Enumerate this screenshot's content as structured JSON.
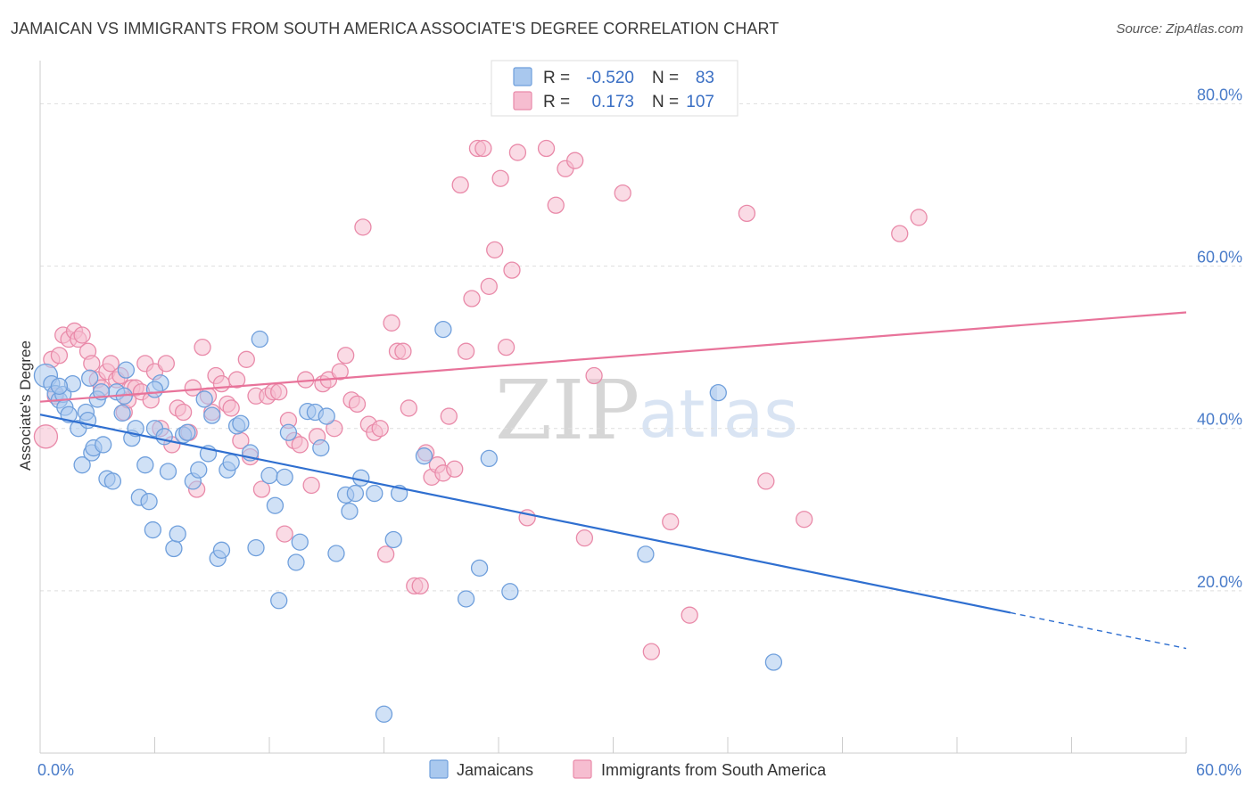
{
  "title": "JAMAICAN VS IMMIGRANTS FROM SOUTH AMERICA ASSOCIATE'S DEGREE CORRELATION CHART",
  "source": "Source: ZipAtlas.com",
  "watermark": {
    "zip": "ZIP",
    "atlas": "atlas"
  },
  "chart_data": {
    "type": "scatter",
    "ylabel": "Associate's Degree",
    "xlim": [
      0,
      60
    ],
    "ylim": [
      0,
      84
    ],
    "x_tick_labels": [
      {
        "value": 0,
        "label": "0.0%"
      },
      {
        "value": 60,
        "label": "60.0%"
      }
    ],
    "y_tick_labels": [
      {
        "value": 20,
        "label": "20.0%"
      },
      {
        "value": 40,
        "label": "40.0%"
      },
      {
        "value": 60,
        "label": "60.0%"
      },
      {
        "value": 80,
        "label": "80.0%"
      }
    ],
    "grid": "horizontal dashed",
    "legend": {
      "placement": "top-center",
      "rows": [
        {
          "r_label": "R =",
          "r_value": "-0.520",
          "n_label": "N =",
          "n_value": "83"
        },
        {
          "r_label": "R =",
          "r_value": "0.173",
          "n_label": "N =",
          "n_value": "107"
        }
      ]
    },
    "bottom_legend": [
      "Jamaicans",
      "Immigrants from South America"
    ],
    "colors": {
      "jamaicans_fill": "#a9c8ee",
      "jamaicans_stroke": "#6f9fdc",
      "jamaicans_line": "#2f6fd0",
      "sa_fill": "#f6bdd0",
      "sa_stroke": "#e98aa9",
      "sa_line": "#e8739a"
    },
    "series": [
      {
        "name": "Jamaicans",
        "trend": {
          "x0": 0,
          "y0": 41.7,
          "x1": 50.8,
          "y1": 17.3,
          "dash_to_x": 60,
          "dash_to_y": 12.9
        },
        "points": [
          [
            0.3,
            46.5
          ],
          [
            0.6,
            45.5
          ],
          [
            0.8,
            44.3
          ],
          [
            1.0,
            43.5
          ],
          [
            1.2,
            44.2
          ],
          [
            1.3,
            42.6
          ],
          [
            1.5,
            41.7
          ],
          [
            1.7,
            45.5
          ],
          [
            2.0,
            40.0
          ],
          [
            2.2,
            35.5
          ],
          [
            2.4,
            42.0
          ],
          [
            2.6,
            46.2
          ],
          [
            2.7,
            37.0
          ],
          [
            2.8,
            37.6
          ],
          [
            3.0,
            43.6
          ],
          [
            3.3,
            38.0
          ],
          [
            3.5,
            33.8
          ],
          [
            3.8,
            33.5
          ],
          [
            4.0,
            44.5
          ],
          [
            4.3,
            41.9
          ],
          [
            4.5,
            47.2
          ],
          [
            4.8,
            38.8
          ],
          [
            5.0,
            40.0
          ],
          [
            5.2,
            31.5
          ],
          [
            5.5,
            35.5
          ],
          [
            5.7,
            31.0
          ],
          [
            5.9,
            27.5
          ],
          [
            6.0,
            40.0
          ],
          [
            6.3,
            45.6
          ],
          [
            6.5,
            39.0
          ],
          [
            6.7,
            34.7
          ],
          [
            7.0,
            25.2
          ],
          [
            7.2,
            27.0
          ],
          [
            7.5,
            39.2
          ],
          [
            7.7,
            39.5
          ],
          [
            8.0,
            33.5
          ],
          [
            8.3,
            34.9
          ],
          [
            8.6,
            43.6
          ],
          [
            8.8,
            36.9
          ],
          [
            9.0,
            41.6
          ],
          [
            9.3,
            24.0
          ],
          [
            9.5,
            25.0
          ],
          [
            9.8,
            34.9
          ],
          [
            10.0,
            35.8
          ],
          [
            10.3,
            40.3
          ],
          [
            10.5,
            40.6
          ],
          [
            11.0,
            37.0
          ],
          [
            11.3,
            25.3
          ],
          [
            11.5,
            51.0
          ],
          [
            12.0,
            34.2
          ],
          [
            12.3,
            30.5
          ],
          [
            12.5,
            18.8
          ],
          [
            12.8,
            34.0
          ],
          [
            13.0,
            39.5
          ],
          [
            13.4,
            23.5
          ],
          [
            13.6,
            26.0
          ],
          [
            14.0,
            42.1
          ],
          [
            14.4,
            42.0
          ],
          [
            14.7,
            37.6
          ],
          [
            15.0,
            41.5
          ],
          [
            15.5,
            24.6
          ],
          [
            16.0,
            31.8
          ],
          [
            16.2,
            29.8
          ],
          [
            16.5,
            32.0
          ],
          [
            16.8,
            33.9
          ],
          [
            18.5,
            26.3
          ],
          [
            18.8,
            32.0
          ],
          [
            20.1,
            36.6
          ],
          [
            21.1,
            52.2
          ],
          [
            22.3,
            19.0
          ],
          [
            23.0,
            22.8
          ],
          [
            23.5,
            36.3
          ],
          [
            24.6,
            19.9
          ],
          [
            31.7,
            24.5
          ],
          [
            35.5,
            44.4
          ],
          [
            38.4,
            11.2
          ],
          [
            18.0,
            4.8
          ],
          [
            17.5,
            32.0
          ],
          [
            3.2,
            44.5
          ],
          [
            1.0,
            45.2
          ],
          [
            6.0,
            44.8
          ],
          [
            2.5,
            41.0
          ],
          [
            4.4,
            44.0
          ]
        ]
      },
      {
        "name": "Immigrants from South America",
        "trend": {
          "x0": 0,
          "y0": 43.3,
          "x1": 60,
          "y1": 54.3
        },
        "points": [
          [
            0.3,
            39.0
          ],
          [
            0.6,
            48.5
          ],
          [
            0.8,
            44.0
          ],
          [
            1.0,
            49.0
          ],
          [
            1.2,
            51.5
          ],
          [
            1.5,
            51.0
          ],
          [
            1.8,
            52.0
          ],
          [
            2.0,
            51.0
          ],
          [
            2.2,
            51.5
          ],
          [
            2.5,
            49.5
          ],
          [
            2.7,
            48.0
          ],
          [
            3.0,
            46.0
          ],
          [
            3.2,
            45.0
          ],
          [
            3.5,
            47.0
          ],
          [
            3.7,
            48.0
          ],
          [
            4.0,
            46.0
          ],
          [
            4.2,
            46.5
          ],
          [
            4.4,
            42.0
          ],
          [
            4.6,
            43.5
          ],
          [
            4.8,
            45.0
          ],
          [
            5.0,
            45.0
          ],
          [
            5.3,
            44.5
          ],
          [
            5.5,
            48.0
          ],
          [
            5.8,
            43.5
          ],
          [
            6.0,
            47.0
          ],
          [
            6.3,
            40.0
          ],
          [
            6.6,
            48.0
          ],
          [
            6.9,
            38.0
          ],
          [
            7.2,
            42.5
          ],
          [
            7.5,
            42.0
          ],
          [
            7.8,
            39.5
          ],
          [
            8.0,
            45.0
          ],
          [
            8.2,
            32.5
          ],
          [
            8.5,
            50.0
          ],
          [
            8.8,
            44.0
          ],
          [
            9.0,
            42.0
          ],
          [
            9.2,
            46.5
          ],
          [
            9.5,
            45.5
          ],
          [
            9.8,
            43.0
          ],
          [
            10.0,
            42.5
          ],
          [
            10.3,
            46.0
          ],
          [
            10.5,
            38.5
          ],
          [
            10.8,
            48.5
          ],
          [
            11.0,
            36.5
          ],
          [
            11.3,
            44.0
          ],
          [
            11.6,
            32.5
          ],
          [
            11.9,
            44.0
          ],
          [
            12.2,
            44.5
          ],
          [
            12.5,
            44.5
          ],
          [
            12.8,
            27.0
          ],
          [
            13.0,
            41.0
          ],
          [
            13.3,
            38.5
          ],
          [
            13.6,
            38.0
          ],
          [
            13.9,
            46.0
          ],
          [
            14.2,
            33.0
          ],
          [
            14.5,
            39.0
          ],
          [
            14.8,
            45.5
          ],
          [
            15.1,
            46.0
          ],
          [
            15.4,
            40.0
          ],
          [
            15.7,
            47.0
          ],
          [
            16.0,
            49.0
          ],
          [
            16.3,
            43.5
          ],
          [
            16.6,
            43.0
          ],
          [
            16.9,
            64.8
          ],
          [
            17.2,
            40.5
          ],
          [
            17.5,
            39.5
          ],
          [
            17.8,
            40.0
          ],
          [
            18.1,
            24.5
          ],
          [
            18.4,
            53.0
          ],
          [
            18.7,
            49.5
          ],
          [
            19.0,
            49.5
          ],
          [
            19.3,
            42.5
          ],
          [
            19.6,
            20.6
          ],
          [
            19.9,
            20.6
          ],
          [
            20.2,
            37.0
          ],
          [
            20.5,
            34.0
          ],
          [
            20.8,
            35.5
          ],
          [
            21.1,
            34.5
          ],
          [
            21.4,
            41.5
          ],
          [
            21.7,
            35.0
          ],
          [
            22.0,
            70.0
          ],
          [
            22.3,
            49.5
          ],
          [
            22.6,
            56.0
          ],
          [
            22.9,
            74.5
          ],
          [
            23.2,
            74.5
          ],
          [
            23.5,
            57.5
          ],
          [
            23.8,
            62.0
          ],
          [
            24.1,
            70.8
          ],
          [
            24.4,
            50.0
          ],
          [
            24.7,
            59.5
          ],
          [
            25.0,
            74.0
          ],
          [
            25.5,
            29.0
          ],
          [
            26.5,
            74.5
          ],
          [
            27.0,
            67.5
          ],
          [
            27.5,
            72.0
          ],
          [
            28.0,
            73.0
          ],
          [
            28.5,
            26.5
          ],
          [
            29.0,
            46.5
          ],
          [
            30.5,
            69.0
          ],
          [
            32.0,
            12.5
          ],
          [
            33.0,
            28.5
          ],
          [
            34.0,
            17.0
          ],
          [
            37.0,
            66.5
          ],
          [
            38.0,
            33.5
          ],
          [
            40.0,
            28.8
          ],
          [
            45.0,
            64.0
          ],
          [
            46.0,
            66.0
          ]
        ]
      }
    ]
  }
}
